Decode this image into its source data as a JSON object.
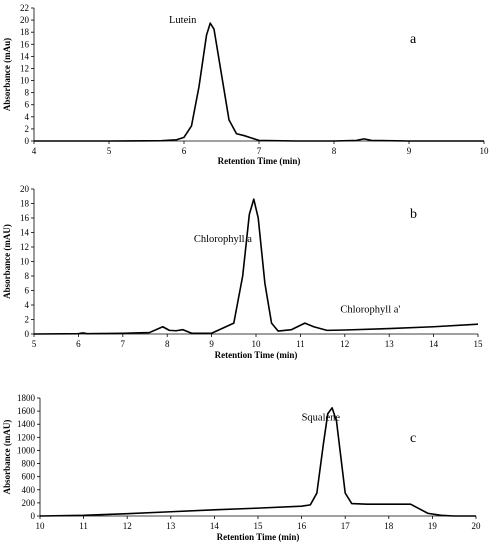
{
  "chart_data": [
    {
      "type": "line",
      "panel_label": "a",
      "xlabel": "Retention Time (min)",
      "ylabel": "Absorbance (mAu)",
      "xlim": [
        4,
        10
      ],
      "ylim": [
        0,
        22
      ],
      "xticks": [
        4,
        5,
        6,
        7,
        8,
        9,
        10
      ],
      "yticks": [
        0,
        2,
        4,
        6,
        8,
        10,
        12,
        14,
        16,
        18,
        20,
        22
      ],
      "annotations": [
        {
          "text": "Lutein",
          "x": 5.8,
          "y": 19.5
        }
      ],
      "x": [
        4.0,
        5.0,
        5.7,
        5.9,
        6.0,
        6.1,
        6.2,
        6.3,
        6.35,
        6.4,
        6.5,
        6.6,
        6.7,
        6.8,
        6.9,
        7.0,
        7.5,
        8.0,
        8.3,
        8.4,
        8.5,
        9.0,
        10.0
      ],
      "y": [
        0.0,
        0.0,
        0.05,
        0.2,
        0.6,
        2.5,
        9.0,
        17.5,
        19.5,
        18.5,
        11.0,
        3.5,
        1.2,
        0.9,
        0.5,
        0.1,
        0.0,
        0.0,
        0.1,
        0.35,
        0.1,
        0.0,
        0.0
      ]
    },
    {
      "type": "line",
      "panel_label": "b",
      "xlabel": "Retention Time (min)",
      "ylabel": "Absorbance (mAU)",
      "xlim": [
        5,
        15
      ],
      "ylim": [
        0,
        20
      ],
      "xticks": [
        5,
        6,
        7,
        8,
        9,
        10,
        11,
        12,
        13,
        14,
        15
      ],
      "yticks": [
        0,
        2,
        4,
        6,
        8,
        10,
        12,
        14,
        16,
        18,
        20
      ],
      "annotations": [
        {
          "text": "Chlorophyll a",
          "x": 8.6,
          "y": 12.7
        },
        {
          "text": "Chlorophyll a'",
          "x": 11.9,
          "y": 3.0
        }
      ],
      "x": [
        5.0,
        6.0,
        6.1,
        6.2,
        7.0,
        7.6,
        7.9,
        8.05,
        8.2,
        8.35,
        8.55,
        9.0,
        9.5,
        9.7,
        9.85,
        9.95,
        10.05,
        10.2,
        10.35,
        10.5,
        10.8,
        11.1,
        11.3,
        11.6,
        12.0,
        13.0,
        14.0,
        15.0
      ],
      "y": [
        0.0,
        0.05,
        0.15,
        0.05,
        0.1,
        0.2,
        1.0,
        0.5,
        0.45,
        0.6,
        0.1,
        0.1,
        1.5,
        8.0,
        16.5,
        18.6,
        16.0,
        7.0,
        1.5,
        0.4,
        0.6,
        1.5,
        1.0,
        0.5,
        0.55,
        0.75,
        1.0,
        1.35
      ]
    },
    {
      "type": "line",
      "panel_label": "c",
      "xlabel": "Retention Time (min)",
      "ylabel": "Absorbance (mAU)",
      "xlim": [
        10,
        20
      ],
      "ylim": [
        0,
        1800
      ],
      "xticks": [
        10,
        11,
        12,
        13,
        14,
        15,
        16,
        17,
        18,
        19,
        20
      ],
      "yticks": [
        0,
        200,
        400,
        600,
        800,
        1000,
        1200,
        1400,
        1600,
        1800
      ],
      "annotations": [
        {
          "text": "Squalene",
          "x": 16.0,
          "y": 1460
        }
      ],
      "x": [
        10.0,
        11.0,
        12.0,
        13.0,
        14.0,
        15.0,
        16.0,
        16.2,
        16.35,
        16.5,
        16.6,
        16.7,
        16.8,
        16.9,
        17.0,
        17.15,
        17.5,
        18.0,
        18.5,
        18.7,
        18.9,
        19.2,
        19.5,
        20.0
      ],
      "y": [
        0,
        10,
        35,
        65,
        95,
        120,
        150,
        170,
        350,
        1100,
        1560,
        1650,
        1450,
        900,
        350,
        190,
        180,
        180,
        180,
        110,
        40,
        10,
        0,
        0
      ]
    }
  ]
}
